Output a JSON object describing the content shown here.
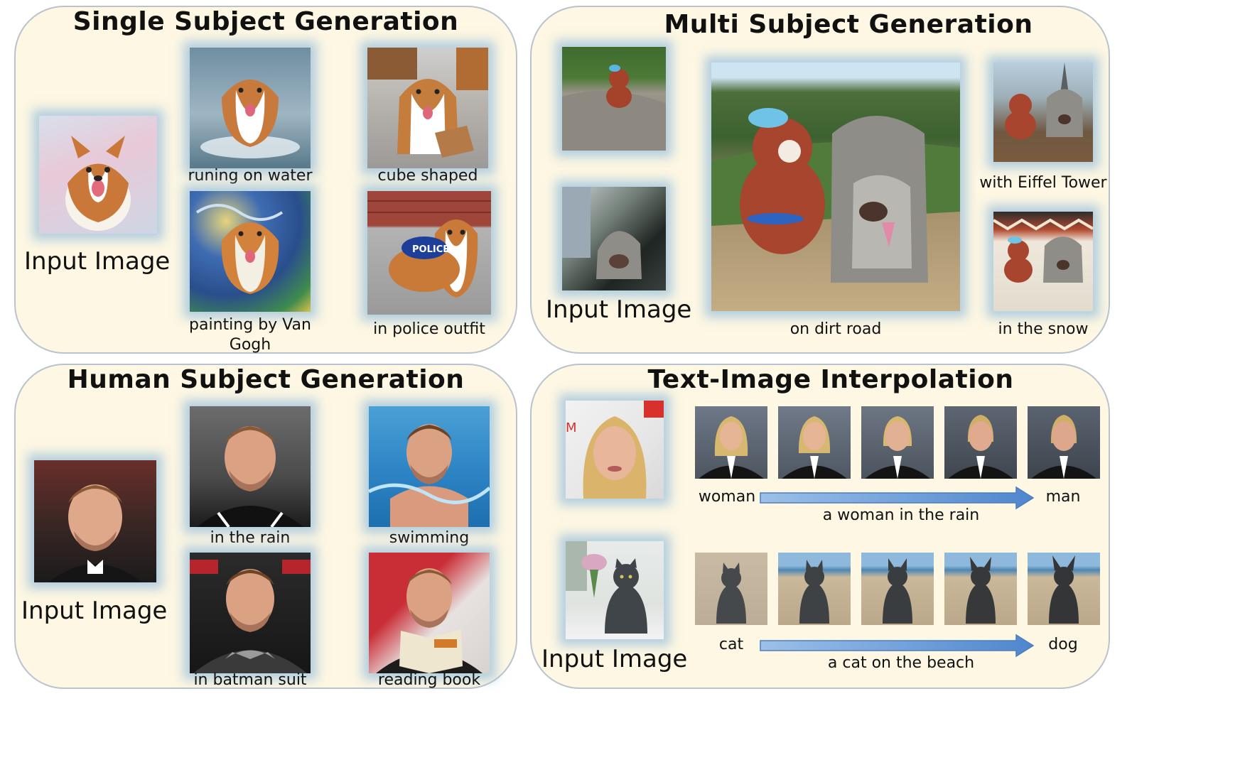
{
  "panels": {
    "single": {
      "title": "Single Subject Generation",
      "input_label": "Input Image",
      "captions": [
        "runing on water",
        "cube shaped",
        "painting by Van Gogh",
        "in police outfit"
      ]
    },
    "multi": {
      "title": "Multi Subject Generation",
      "input_label": "Input Image",
      "captions": [
        "on dirt road",
        "with Eiffel Tower",
        "in the snow"
      ]
    },
    "human": {
      "title": "Human Subject Generation",
      "input_label": "Input Image",
      "captions": [
        "in the rain",
        "swimming",
        "in batman suit",
        "reading book"
      ]
    },
    "interp": {
      "title": "Text-Image Interpolation",
      "input_label": "Input Image",
      "row1": {
        "start": "woman",
        "end": "man",
        "prompt": "a woman in the rain"
      },
      "row2": {
        "start": "cat",
        "end": "dog",
        "prompt": "a cat on the beach"
      }
    }
  },
  "colors": {
    "panel_bg": "#fdf7e3",
    "panel_border": "#b9c3cf",
    "glow": "#8cb9dc",
    "arrow": "#6a9fd8"
  }
}
